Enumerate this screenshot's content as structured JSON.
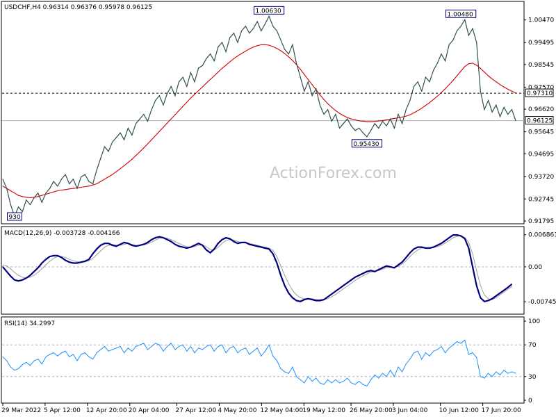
{
  "chart_data": {
    "type": "line",
    "main": {
      "header": "USDCHF,H4  0.96314 0.96376 0.95978 0.96125",
      "ylim": [
        0.91795,
        1.0115
      ],
      "y_ticks": [
        "1.00470",
        "0.99495",
        "0.98545",
        "0.97570",
        "0.96620",
        "0.95645",
        "0.94695",
        "0.93720",
        "0.92745",
        "0.91795"
      ],
      "last_price": 0.96125,
      "last_price_label": "0.96125",
      "resistance": 0.9731,
      "resistance_label": "0.97310",
      "peaks": [
        {
          "label": "1.00630",
          "value": 1.0063,
          "i": 68
        },
        {
          "label": "1.00480",
          "value": 1.0048,
          "i": 117
        },
        {
          "label": "0.95430",
          "value": 0.9543,
          "i": 93
        },
        {
          "label": "930",
          "value": 0.9193,
          "i": 3
        }
      ],
      "series": [
        {
          "name": "close",
          "color": "#2f4f4f",
          "values": [
            0.936,
            0.932,
            0.925,
            0.92,
            0.924,
            0.922,
            0.927,
            0.925,
            0.928,
            0.93,
            0.926,
            0.93,
            0.932,
            0.935,
            0.933,
            0.936,
            0.938,
            0.934,
            0.936,
            0.932,
            0.937,
            0.938,
            0.935,
            0.934,
            0.94,
            0.945,
            0.95,
            0.948,
            0.952,
            0.954,
            0.956,
            0.953,
            0.958,
            0.955,
            0.96,
            0.962,
            0.964,
            0.961,
            0.966,
            0.97,
            0.972,
            0.968,
            0.973,
            0.976,
            0.972,
            0.978,
            0.98,
            0.976,
            0.982,
            0.978,
            0.984,
            0.985,
            0.988,
            0.99,
            0.987,
            0.993,
            0.995,
            0.991,
            0.997,
            0.999,
            0.995,
            1.0,
            1.002,
            0.999,
            1.001,
            1.004,
            1.0,
            1.003,
            1.0063,
            1.002,
            1.0,
            0.996,
            0.992,
            0.99,
            0.994,
            0.986,
            0.98,
            0.974,
            0.978,
            0.972,
            0.975,
            0.968,
            0.964,
            0.966,
            0.961,
            0.964,
            0.958,
            0.96,
            0.962,
            0.959,
            0.957,
            0.958,
            0.956,
            0.9543,
            0.957,
            0.96,
            0.958,
            0.961,
            0.959,
            0.962,
            0.958,
            0.964,
            0.96,
            0.966,
            0.97,
            0.976,
            0.978,
            0.974,
            0.98,
            0.978,
            0.983,
            0.986,
            0.99,
            0.987,
            0.994,
            0.996,
            1.0,
            1.002,
            1.0048,
            0.998,
            1.001,
            0.995,
            0.974,
            0.966,
            0.97,
            0.965,
            0.968,
            0.963,
            0.967,
            0.964,
            0.966,
            0.96125
          ]
        },
        {
          "name": "ma",
          "color": "#d20000",
          "values": [
            0.933,
            0.932,
            0.931,
            0.93,
            0.929,
            0.9285,
            0.9282,
            0.928,
            0.9282,
            0.9285,
            0.929,
            0.9295,
            0.93,
            0.9305,
            0.931,
            0.9313,
            0.9315,
            0.9318,
            0.932,
            0.9322,
            0.9325,
            0.9328,
            0.933,
            0.9335,
            0.934,
            0.935,
            0.936,
            0.937,
            0.938,
            0.9392,
            0.9405,
            0.9418,
            0.9432,
            0.9446,
            0.9462,
            0.9478,
            0.9495,
            0.9512,
            0.953,
            0.9548,
            0.9566,
            0.9584,
            0.9602,
            0.962,
            0.9638,
            0.9656,
            0.9674,
            0.9692,
            0.971,
            0.9726,
            0.9742,
            0.9758,
            0.9774,
            0.979,
            0.9806,
            0.9822,
            0.9838,
            0.9852,
            0.9866,
            0.988,
            0.9892,
            0.9902,
            0.9912,
            0.9922,
            0.993,
            0.9936,
            0.994,
            0.994,
            0.9938,
            0.9932,
            0.9924,
            0.9914,
            0.9902,
            0.9888,
            0.9872,
            0.9854,
            0.9834,
            0.9812,
            0.979,
            0.9768,
            0.9746,
            0.9724,
            0.9704,
            0.9686,
            0.967,
            0.9656,
            0.9644,
            0.9634,
            0.9626,
            0.962,
            0.9616,
            0.9612,
            0.961,
            0.9608,
            0.9608,
            0.9609,
            0.9611,
            0.9613,
            0.9616,
            0.9619,
            0.9622,
            0.9625,
            0.9628,
            0.9632,
            0.9638,
            0.9646,
            0.9656,
            0.9666,
            0.9678,
            0.969,
            0.9704,
            0.9718,
            0.9734,
            0.975,
            0.9768,
            0.9786,
            0.9806,
            0.9826,
            0.9846,
            0.9858,
            0.986,
            0.9852,
            0.9838,
            0.9822,
            0.9806,
            0.9792,
            0.978,
            0.9768,
            0.9758,
            0.9748,
            0.974,
            0.9732
          ]
        }
      ]
    },
    "macd": {
      "header": "MACD(12,26,9) -0.003728 -0.004166",
      "ylim": [
        -0.0095,
        0.008
      ],
      "y_ticks": [
        "0.006861",
        "0.00",
        "-0.007454"
      ],
      "zero_line": 0,
      "series": [
        {
          "name": "macd",
          "color": "#00007f",
          "values": [
            0.0,
            -0.001,
            -0.002,
            -0.0028,
            -0.003,
            -0.0028,
            -0.0024,
            -0.0018,
            -0.001,
            -0.0002,
            0.0008,
            0.0016,
            0.0022,
            0.0024,
            0.0024,
            0.002,
            0.0014,
            0.001,
            0.0008,
            0.0008,
            0.001,
            0.0012,
            0.0016,
            0.0028,
            0.0038,
            0.0046,
            0.005,
            0.005,
            0.0046,
            0.0044,
            0.0048,
            0.0052,
            0.005,
            0.0046,
            0.0044,
            0.0046,
            0.0048,
            0.0052,
            0.0058,
            0.0062,
            0.0064,
            0.0062,
            0.0058,
            0.0054,
            0.0048,
            0.0044,
            0.0042,
            0.004,
            0.0042,
            0.0046,
            0.005,
            0.0046,
            0.0036,
            0.003,
            0.0038,
            0.005,
            0.0058,
            0.0062,
            0.006,
            0.0054,
            0.005,
            0.0052,
            0.0052,
            0.0048,
            0.0046,
            0.0044,
            0.0042,
            0.004,
            0.0038,
            0.0028,
            0.0008,
            -0.0018,
            -0.004,
            -0.0056,
            -0.0066,
            -0.0072,
            -0.0074,
            -0.007,
            -0.0068,
            -0.007,
            -0.0072,
            -0.0072,
            -0.007,
            -0.0064,
            -0.0058,
            -0.0052,
            -0.0046,
            -0.004,
            -0.0034,
            -0.0028,
            -0.0022,
            -0.0018,
            -0.0014,
            -0.001,
            -0.0008,
            -0.001,
            -0.0006,
            -0.0002,
            0.0002,
            0.0,
            -0.0002,
            0.0004,
            0.001,
            0.002,
            0.003,
            0.0038,
            0.0042,
            0.0042,
            0.004,
            0.004,
            0.0042,
            0.0046,
            0.005,
            0.0056,
            0.0062,
            0.0068,
            0.0068,
            0.0066,
            0.006,
            0.004,
            0.0,
            -0.004,
            -0.0066,
            -0.0074,
            -0.0072,
            -0.0068,
            -0.0062,
            -0.0056,
            -0.005,
            -0.0044,
            -0.0037
          ]
        },
        {
          "name": "signal",
          "color": "#a0a0a0",
          "values": [
            0.0004,
            0.0002,
            -0.0004,
            -0.0012,
            -0.0018,
            -0.0022,
            -0.0024,
            -0.0022,
            -0.0018,
            -0.0012,
            -0.0004,
            0.0004,
            0.0012,
            0.0018,
            0.0022,
            0.0022,
            0.002,
            0.0016,
            0.0013,
            0.0011,
            0.001,
            0.0011,
            0.0013,
            0.0018,
            0.0026,
            0.0034,
            0.0042,
            0.0046,
            0.0048,
            0.0046,
            0.0046,
            0.0048,
            0.005,
            0.0048,
            0.0046,
            0.0046,
            0.0047,
            0.0049,
            0.0053,
            0.0057,
            0.0061,
            0.0062,
            0.0061,
            0.0058,
            0.0054,
            0.005,
            0.0046,
            0.0043,
            0.0042,
            0.0043,
            0.0046,
            0.0047,
            0.0043,
            0.0037,
            0.0036,
            0.0042,
            0.005,
            0.0056,
            0.0059,
            0.0057,
            0.0054,
            0.0052,
            0.0052,
            0.005,
            0.0048,
            0.0046,
            0.0044,
            0.0042,
            0.004,
            0.0035,
            0.0022,
            0.0002,
            -0.0018,
            -0.0036,
            -0.005,
            -0.006,
            -0.0066,
            -0.0068,
            -0.0068,
            -0.0068,
            -0.007,
            -0.007,
            -0.007,
            -0.0068,
            -0.0064,
            -0.0059,
            -0.0053,
            -0.0047,
            -0.0041,
            -0.0035,
            -0.0029,
            -0.0024,
            -0.0019,
            -0.0015,
            -0.0011,
            -0.001,
            -0.0008,
            -0.0005,
            -0.0002,
            -0.0001,
            -0.0001,
            0.0001,
            0.0006,
            0.0013,
            0.0022,
            0.003,
            0.0036,
            0.004,
            0.0041,
            0.0041,
            0.0041,
            0.0043,
            0.0046,
            0.0051,
            0.0056,
            0.0062,
            0.0065,
            0.0066,
            0.0063,
            0.0052,
            0.0028,
            -0.0008,
            -0.004,
            -0.006,
            -0.0068,
            -0.007,
            -0.0066,
            -0.006,
            -0.0054,
            -0.0048,
            -0.0042
          ]
        }
      ]
    },
    "rsi": {
      "header": "RSI(14) 34.2997",
      "ylim": [
        0,
        100
      ],
      "y_ticks": [
        "100",
        "70",
        "30",
        "0"
      ],
      "levels": [
        70,
        30
      ],
      "series": [
        {
          "name": "rsi",
          "color": "#1e90ff",
          "values": [
            55,
            50,
            42,
            38,
            40,
            45,
            48,
            44,
            50,
            52,
            46,
            55,
            58,
            60,
            56,
            60,
            62,
            55,
            58,
            50,
            58,
            60,
            55,
            52,
            60,
            64,
            68,
            62,
            64,
            66,
            68,
            60,
            66,
            62,
            68,
            70,
            72,
            64,
            68,
            72,
            70,
            62,
            68,
            72,
            64,
            68,
            70,
            62,
            68,
            60,
            66,
            64,
            68,
            70,
            62,
            68,
            70,
            60,
            66,
            68,
            60,
            64,
            66,
            58,
            62,
            66,
            56,
            62,
            70,
            56,
            50,
            40,
            36,
            34,
            42,
            30,
            26,
            22,
            30,
            24,
            28,
            22,
            20,
            26,
            22,
            26,
            22,
            24,
            28,
            22,
            20,
            24,
            20,
            18,
            26,
            32,
            28,
            34,
            30,
            38,
            30,
            42,
            36,
            46,
            52,
            60,
            62,
            52,
            60,
            56,
            62,
            64,
            68,
            60,
            66,
            70,
            74,
            72,
            76,
            58,
            60,
            54,
            30,
            28,
            34,
            30,
            36,
            32,
            38,
            34,
            36,
            34
          ]
        }
      ]
    },
    "x_ticks": [
      {
        "i": 0,
        "label": "29 Mar 2022"
      },
      {
        "i": 9,
        "label": "5 Apr 12:00"
      },
      {
        "i": 18,
        "label": "12 Apr 20:00"
      },
      {
        "i": 27,
        "label": "20 Apr 04:00"
      },
      {
        "i": 37,
        "label": "27 Apr 12:00"
      },
      {
        "i": 46,
        "label": "4 May 20:00"
      },
      {
        "i": 55,
        "label": "12 May 04:00"
      },
      {
        "i": 64,
        "label": "19 May 12:00"
      },
      {
        "i": 74,
        "label": "26 May 20:00"
      },
      {
        "i": 83,
        "label": "3 Jun 04:00"
      },
      {
        "i": 93,
        "label": "10 Jun 12:00"
      },
      {
        "i": 102,
        "label": "17 Jun 20:00"
      }
    ],
    "watermark": "ActionForex.com"
  }
}
